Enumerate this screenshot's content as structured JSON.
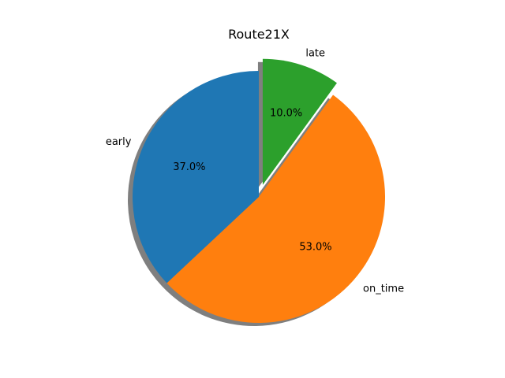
{
  "chart_data": {
    "type": "pie",
    "title": "Route21X",
    "labels": [
      "late",
      "on_time",
      "early"
    ],
    "values": [
      10.0,
      53.0,
      37.0
    ],
    "percent_labels": [
      "10.0%",
      "53.0%",
      "37.0%"
    ],
    "colors": [
      "#2ca02c",
      "#ff7f0e",
      "#1f77b4"
    ],
    "explode": [
      0.1,
      0,
      0
    ],
    "start_angle_deg": 90,
    "direction": "clockwise",
    "shadow": true
  }
}
